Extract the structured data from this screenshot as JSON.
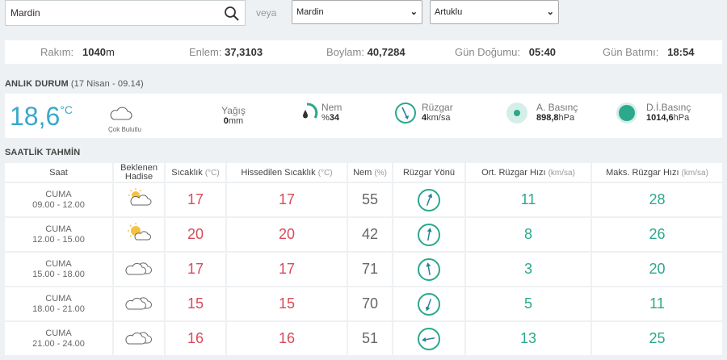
{
  "search": {
    "value": "Mardin"
  },
  "veya": "veya",
  "province_select": "Mardin",
  "district_select": "Artuklu",
  "info": {
    "rakim_label": "Rakım:",
    "rakim_value": "1040",
    "rakim_unit": "m",
    "enlem_label": "Enlem:",
    "enlem_value": "37,3103",
    "boylam_label": "Boylam:",
    "boylam_value": "40,7284",
    "gundogumu_label": "Gün Doğumu:",
    "gundogumu_value": "05:40",
    "gunbatimi_label": "Gün Batımı:",
    "gunbatimi_value": "18:54"
  },
  "now": {
    "title": "ANLIK DURUM",
    "date": "(17 Nisan - 09.14)",
    "temp": "18,6",
    "temp_unit": "°C",
    "condition": "Çok Bulutlu",
    "yagis_label": "Yağış",
    "yagis_value": "0",
    "yagis_unit": "mm",
    "nem_label": "Nem",
    "nem_prefix": "%",
    "nem_value": "34",
    "ruzgar_label": "Rüzgar",
    "ruzgar_value": "4",
    "ruzgar_unit": "km/sa",
    "abasinc_label": "A. Basınç",
    "abasinc_value": "898,8",
    "abasinc_unit": "hPa",
    "dibasinc_label": "D.İ.Basınç",
    "dibasinc_value": "1014,6",
    "dibasinc_unit": "hPa",
    "accent": "#2ca88c"
  },
  "forecast": {
    "title": "SAATLİK TAHMİN",
    "headers": {
      "saat": "Saat",
      "hadise1": "Beklenen",
      "hadise2": "Hadise",
      "sicaklik": "Sıcaklık",
      "sicaklik_u": "(°C)",
      "hissedilen": "Hissedilen Sıcaklık",
      "hissedilen_u": "(°C)",
      "nem": "Nem",
      "nem_u": "(%)",
      "yon": "Rüzgar Yönü",
      "ort": "Ort. Rüzgar Hızı",
      "ort_u": "(km/sa)",
      "maks": "Maks. Rüzgar Hızı",
      "maks_u": "(km/sa)"
    },
    "rows": [
      {
        "day": "CUMA",
        "time": "09.00 - 12.00",
        "icon": "partly-cloudy-icon",
        "temp": "17",
        "feels": "17",
        "hum": "55",
        "dir_deg": 20,
        "avg": "11",
        "max": "28"
      },
      {
        "day": "CUMA",
        "time": "12.00 - 15.00",
        "icon": "sun-cloud-icon",
        "temp": "20",
        "feels": "20",
        "hum": "42",
        "dir_deg": 10,
        "avg": "8",
        "max": "26"
      },
      {
        "day": "CUMA",
        "time": "15.00 - 18.00",
        "icon": "cloud-icon",
        "temp": "17",
        "feels": "17",
        "hum": "71",
        "dir_deg": -10,
        "avg": "3",
        "max": "20"
      },
      {
        "day": "CUMA",
        "time": "18.00 - 21.00",
        "icon": "cloud-icon",
        "temp": "15",
        "feels": "15",
        "hum": "70",
        "dir_deg": 200,
        "avg": "5",
        "max": "11"
      },
      {
        "day": "CUMA",
        "time": "21.00 - 24.00",
        "icon": "cloud-icon",
        "temp": "16",
        "feels": "16",
        "hum": "51",
        "dir_deg": 260,
        "avg": "13",
        "max": "25"
      }
    ]
  }
}
